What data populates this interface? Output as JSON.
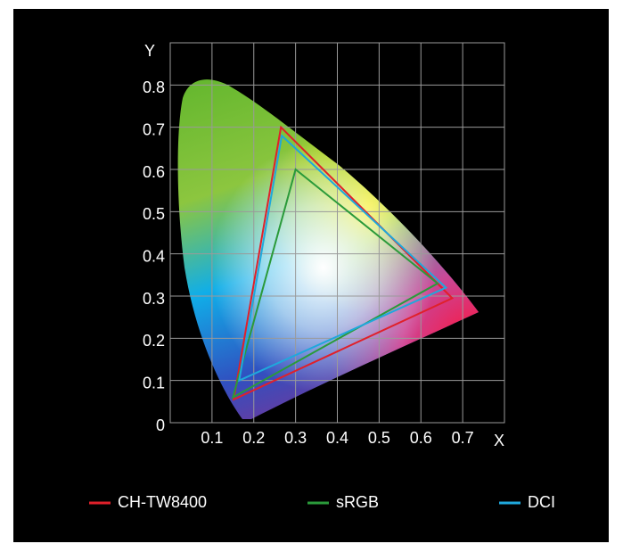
{
  "chart_data": {
    "type": "line",
    "x_label": "X",
    "y_label": "Y",
    "xlim": [
      0,
      0.8
    ],
    "ylim": [
      0,
      0.9
    ],
    "xticks": [
      0.1,
      0.2,
      0.3,
      0.4,
      0.5,
      0.6,
      0.7
    ],
    "yticks": [
      0,
      0.1,
      0.2,
      0.3,
      0.4,
      0.5,
      0.6,
      0.7,
      0.8
    ],
    "grid": true,
    "legend": "bottom",
    "series": [
      {
        "name": "CH-TW8400",
        "color": "#e0202a",
        "x": [
          0.152,
          0.265,
          0.675
        ],
        "y": [
          0.055,
          0.7,
          0.295
        ]
      },
      {
        "name": "sRGB",
        "color": "#2a9a3a",
        "x": [
          0.15,
          0.3,
          0.64
        ],
        "y": [
          0.06,
          0.6,
          0.33
        ]
      },
      {
        "name": "DCI",
        "color": "#1fa8dc",
        "x": [
          0.165,
          0.267,
          0.66
        ],
        "y": [
          0.1,
          0.68,
          0.32
        ]
      }
    ]
  }
}
